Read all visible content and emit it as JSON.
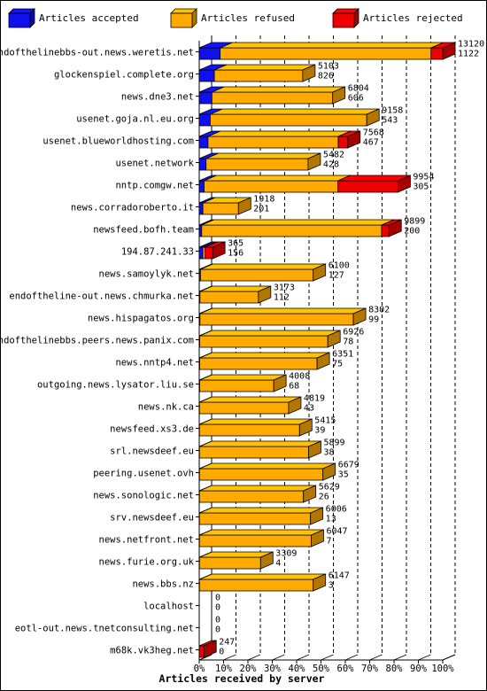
{
  "colors": {
    "accepted": "#1010ee",
    "refused": "#ffaa00",
    "rejected": "#ee0000",
    "background": "#ffffff",
    "frame": "#000000"
  },
  "legend": {
    "accepted": "Articles accepted",
    "refused": "Articles refused",
    "rejected": "Articles rejected"
  },
  "chart_data": {
    "type": "bar",
    "orientation": "horizontal",
    "stacked": true,
    "normalized_percent": true,
    "xlabel": "Articles received by server",
    "xticks": [
      "0%",
      "10%",
      "20%",
      "30%",
      "40%",
      "50%",
      "60%",
      "70%",
      "80%",
      "90%",
      "100%"
    ],
    "categories": [
      "endofthelinebbs-out.news.weretis.net",
      "glockenspiel.complete.org",
      "news.dne3.net",
      "usenet.goja.nl.eu.org",
      "usenet.blueworldhosting.com",
      "usenet.network",
      "nntp.comgw.net",
      "news.corradoroberto.it",
      "newsfeed.bofh.team",
      "194.87.241.33",
      "news.samoylyk.net",
      "endoftheline-out.news.chmurka.net",
      "news.hispagatos.org",
      "endofthelinebbs.peers.news.panix.com",
      "news.nntp4.net",
      "outgoing.news.lysator.liu.se",
      "news.nk.ca",
      "newsfeed.xs3.de",
      "srl.newsdeef.eu",
      "peering.usenet.ovh",
      "news.sonologic.net",
      "srv.newsdeef.eu",
      "news.netfront.net",
      "news.furie.org.uk",
      "news.bbs.nz",
      "localhost",
      "eotl-out.news.tnetconsulting.net",
      "m68k.vk3heg.net"
    ],
    "total_labels": [
      "13120",
      "5103",
      "6804",
      "9158",
      "7568",
      "5482",
      "9954",
      "1918",
      "9899",
      "365",
      "6100",
      "3173",
      "8302",
      "6926",
      "6351",
      "4008",
      "4819",
      "5415",
      "5899",
      "6679",
      "5629",
      "6006",
      "6047",
      "3309",
      "6147",
      "0",
      "0",
      "247"
    ],
    "second_labels": [
      "1122",
      "826",
      "606",
      "543",
      "467",
      "428",
      "305",
      "201",
      "200",
      "156",
      "127",
      "112",
      "99",
      "78",
      "75",
      "68",
      "43",
      "39",
      "38",
      "35",
      "26",
      "13",
      "7",
      "4",
      "3",
      "0",
      "0",
      "0"
    ],
    "series": [
      {
        "name": "Articles accepted",
        "percent": [
          8.6,
          6.2,
          5.2,
          4.5,
          3.6,
          2.8,
          2.0,
          1.5,
          1.0,
          1.5,
          0.5,
          0.3,
          0.3,
          0.2,
          0.2,
          0.2,
          0.1,
          0.1,
          0.1,
          0.1,
          0.1,
          0.1,
          0.1,
          0.1,
          0.1,
          0,
          0,
          0
        ]
      },
      {
        "name": "Articles refused",
        "percent": [
          86.6,
          36.3,
          49.6,
          64.3,
          53.5,
          41.9,
          55.0,
          14.6,
          73.9,
          0.9,
          46.3,
          24.0,
          63.0,
          52.6,
          48.2,
          30.4,
          36.6,
          41.1,
          44.8,
          50.7,
          42.7,
          45.6,
          45.9,
          25.1,
          46.7,
          0,
          0,
          0
        ]
      },
      {
        "name": "Articles rejected",
        "percent": [
          4.8,
          0,
          0,
          0,
          3.9,
          0,
          24.6,
          0,
          3.0,
          3.1,
          0,
          0,
          0,
          0,
          0,
          0,
          0,
          0,
          0,
          0,
          0,
          0,
          0,
          0,
          0,
          0,
          0,
          1.9
        ]
      }
    ]
  }
}
